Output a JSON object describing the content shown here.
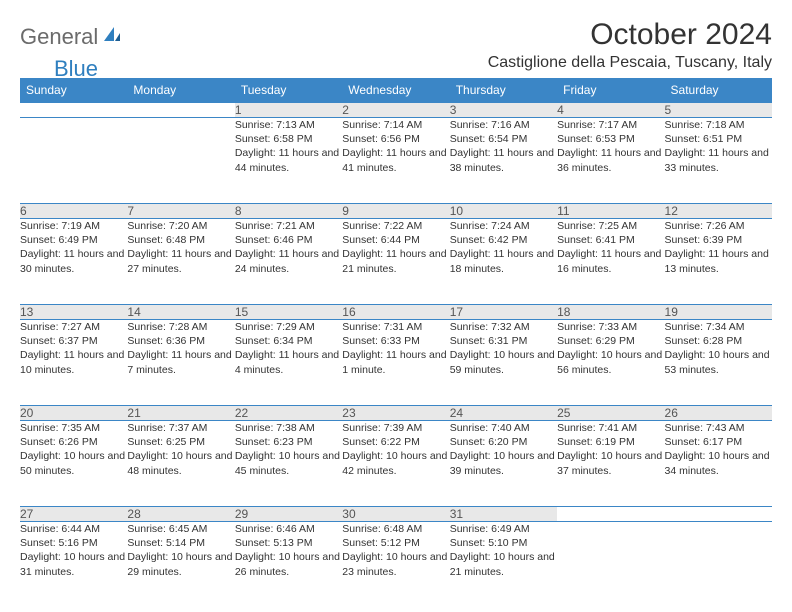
{
  "logo": {
    "gray": "General",
    "blue": "Blue"
  },
  "title": "October 2024",
  "location": "Castiglione della Pescaia, Tuscany, Italy",
  "colors": {
    "header_bg": "#3b86c6",
    "header_text": "#ffffff",
    "daynum_bg": "#e8e8e8",
    "border": "#3b86c6",
    "logo_gray": "#6b6b6b",
    "logo_blue": "#2f7fbf"
  },
  "weekdays": [
    "Sunday",
    "Monday",
    "Tuesday",
    "Wednesday",
    "Thursday",
    "Friday",
    "Saturday"
  ],
  "weeks": [
    [
      null,
      null,
      {
        "n": "1",
        "sr": "Sunrise: 7:13 AM",
        "ss": "Sunset: 6:58 PM",
        "dl": "Daylight: 11 hours and 44 minutes."
      },
      {
        "n": "2",
        "sr": "Sunrise: 7:14 AM",
        "ss": "Sunset: 6:56 PM",
        "dl": "Daylight: 11 hours and 41 minutes."
      },
      {
        "n": "3",
        "sr": "Sunrise: 7:16 AM",
        "ss": "Sunset: 6:54 PM",
        "dl": "Daylight: 11 hours and 38 minutes."
      },
      {
        "n": "4",
        "sr": "Sunrise: 7:17 AM",
        "ss": "Sunset: 6:53 PM",
        "dl": "Daylight: 11 hours and 36 minutes."
      },
      {
        "n": "5",
        "sr": "Sunrise: 7:18 AM",
        "ss": "Sunset: 6:51 PM",
        "dl": "Daylight: 11 hours and 33 minutes."
      }
    ],
    [
      {
        "n": "6",
        "sr": "Sunrise: 7:19 AM",
        "ss": "Sunset: 6:49 PM",
        "dl": "Daylight: 11 hours and 30 minutes."
      },
      {
        "n": "7",
        "sr": "Sunrise: 7:20 AM",
        "ss": "Sunset: 6:48 PM",
        "dl": "Daylight: 11 hours and 27 minutes."
      },
      {
        "n": "8",
        "sr": "Sunrise: 7:21 AM",
        "ss": "Sunset: 6:46 PM",
        "dl": "Daylight: 11 hours and 24 minutes."
      },
      {
        "n": "9",
        "sr": "Sunrise: 7:22 AM",
        "ss": "Sunset: 6:44 PM",
        "dl": "Daylight: 11 hours and 21 minutes."
      },
      {
        "n": "10",
        "sr": "Sunrise: 7:24 AM",
        "ss": "Sunset: 6:42 PM",
        "dl": "Daylight: 11 hours and 18 minutes."
      },
      {
        "n": "11",
        "sr": "Sunrise: 7:25 AM",
        "ss": "Sunset: 6:41 PM",
        "dl": "Daylight: 11 hours and 16 minutes."
      },
      {
        "n": "12",
        "sr": "Sunrise: 7:26 AM",
        "ss": "Sunset: 6:39 PM",
        "dl": "Daylight: 11 hours and 13 minutes."
      }
    ],
    [
      {
        "n": "13",
        "sr": "Sunrise: 7:27 AM",
        "ss": "Sunset: 6:37 PM",
        "dl": "Daylight: 11 hours and 10 minutes."
      },
      {
        "n": "14",
        "sr": "Sunrise: 7:28 AM",
        "ss": "Sunset: 6:36 PM",
        "dl": "Daylight: 11 hours and 7 minutes."
      },
      {
        "n": "15",
        "sr": "Sunrise: 7:29 AM",
        "ss": "Sunset: 6:34 PM",
        "dl": "Daylight: 11 hours and 4 minutes."
      },
      {
        "n": "16",
        "sr": "Sunrise: 7:31 AM",
        "ss": "Sunset: 6:33 PM",
        "dl": "Daylight: 11 hours and 1 minute."
      },
      {
        "n": "17",
        "sr": "Sunrise: 7:32 AM",
        "ss": "Sunset: 6:31 PM",
        "dl": "Daylight: 10 hours and 59 minutes."
      },
      {
        "n": "18",
        "sr": "Sunrise: 7:33 AM",
        "ss": "Sunset: 6:29 PM",
        "dl": "Daylight: 10 hours and 56 minutes."
      },
      {
        "n": "19",
        "sr": "Sunrise: 7:34 AM",
        "ss": "Sunset: 6:28 PM",
        "dl": "Daylight: 10 hours and 53 minutes."
      }
    ],
    [
      {
        "n": "20",
        "sr": "Sunrise: 7:35 AM",
        "ss": "Sunset: 6:26 PM",
        "dl": "Daylight: 10 hours and 50 minutes."
      },
      {
        "n": "21",
        "sr": "Sunrise: 7:37 AM",
        "ss": "Sunset: 6:25 PM",
        "dl": "Daylight: 10 hours and 48 minutes."
      },
      {
        "n": "22",
        "sr": "Sunrise: 7:38 AM",
        "ss": "Sunset: 6:23 PM",
        "dl": "Daylight: 10 hours and 45 minutes."
      },
      {
        "n": "23",
        "sr": "Sunrise: 7:39 AM",
        "ss": "Sunset: 6:22 PM",
        "dl": "Daylight: 10 hours and 42 minutes."
      },
      {
        "n": "24",
        "sr": "Sunrise: 7:40 AM",
        "ss": "Sunset: 6:20 PM",
        "dl": "Daylight: 10 hours and 39 minutes."
      },
      {
        "n": "25",
        "sr": "Sunrise: 7:41 AM",
        "ss": "Sunset: 6:19 PM",
        "dl": "Daylight: 10 hours and 37 minutes."
      },
      {
        "n": "26",
        "sr": "Sunrise: 7:43 AM",
        "ss": "Sunset: 6:17 PM",
        "dl": "Daylight: 10 hours and 34 minutes."
      }
    ],
    [
      {
        "n": "27",
        "sr": "Sunrise: 6:44 AM",
        "ss": "Sunset: 5:16 PM",
        "dl": "Daylight: 10 hours and 31 minutes."
      },
      {
        "n": "28",
        "sr": "Sunrise: 6:45 AM",
        "ss": "Sunset: 5:14 PM",
        "dl": "Daylight: 10 hours and 29 minutes."
      },
      {
        "n": "29",
        "sr": "Sunrise: 6:46 AM",
        "ss": "Sunset: 5:13 PM",
        "dl": "Daylight: 10 hours and 26 minutes."
      },
      {
        "n": "30",
        "sr": "Sunrise: 6:48 AM",
        "ss": "Sunset: 5:12 PM",
        "dl": "Daylight: 10 hours and 23 minutes."
      },
      {
        "n": "31",
        "sr": "Sunrise: 6:49 AM",
        "ss": "Sunset: 5:10 PM",
        "dl": "Daylight: 10 hours and 21 minutes."
      },
      null,
      null
    ]
  ]
}
